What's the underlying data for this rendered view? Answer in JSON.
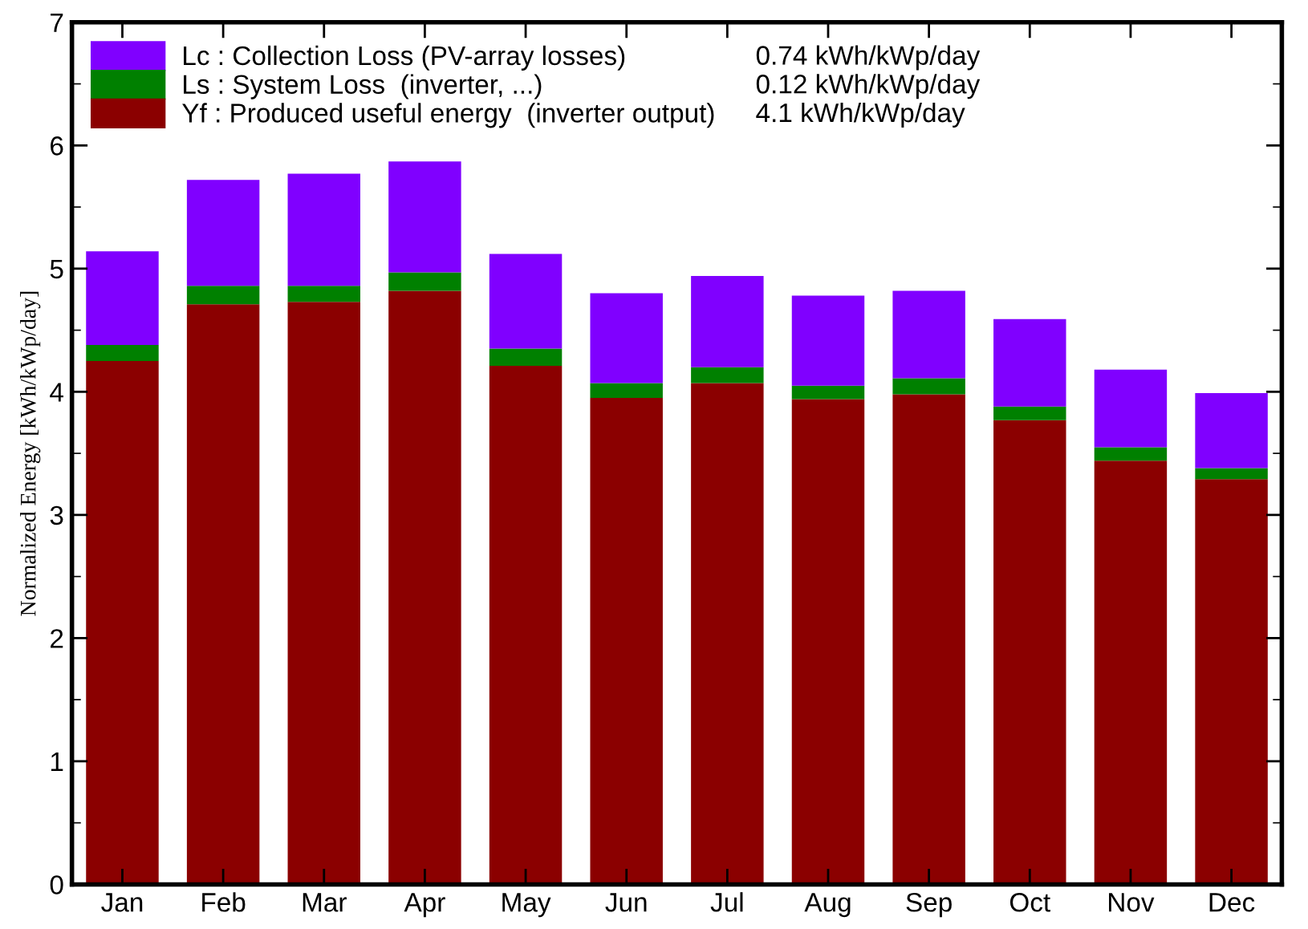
{
  "chart_data": {
    "type": "bar",
    "stacked": true,
    "ylabel": "Normalized Energy [kWh/kWp/day]",
    "categories": [
      "Jan",
      "Feb",
      "Mar",
      "Apr",
      "May",
      "Jun",
      "Jul",
      "Aug",
      "Sep",
      "Oct",
      "Nov",
      "Dec"
    ],
    "series": [
      {
        "name": "Yf : Produced useful energy  (inverter output)",
        "color": "#8b0000",
        "values": [
          4.25,
          4.71,
          4.73,
          4.82,
          4.21,
          3.95,
          4.07,
          3.94,
          3.98,
          3.77,
          3.44,
          3.29
        ]
      },
      {
        "name": "Ls : System Loss  (inverter, ...)",
        "color": "#008000",
        "values": [
          0.13,
          0.15,
          0.13,
          0.15,
          0.14,
          0.12,
          0.13,
          0.11,
          0.13,
          0.11,
          0.11,
          0.09
        ]
      },
      {
        "name": "Lc : Collection Loss (PV-array losses)",
        "color": "#8000ff",
        "values": [
          0.76,
          0.86,
          0.91,
          0.9,
          0.77,
          0.73,
          0.74,
          0.73,
          0.71,
          0.71,
          0.63,
          0.61
        ]
      }
    ],
    "annotations": [
      "4.1 kWh/kWp/day",
      "0.12 kWh/kWp/day",
      "0.74 kWh/kWp/day"
    ],
    "ylim": [
      0,
      7
    ],
    "yticks": [
      0,
      1,
      2,
      3,
      4,
      5,
      6,
      7
    ],
    "grid": false,
    "legend": "top left"
  }
}
